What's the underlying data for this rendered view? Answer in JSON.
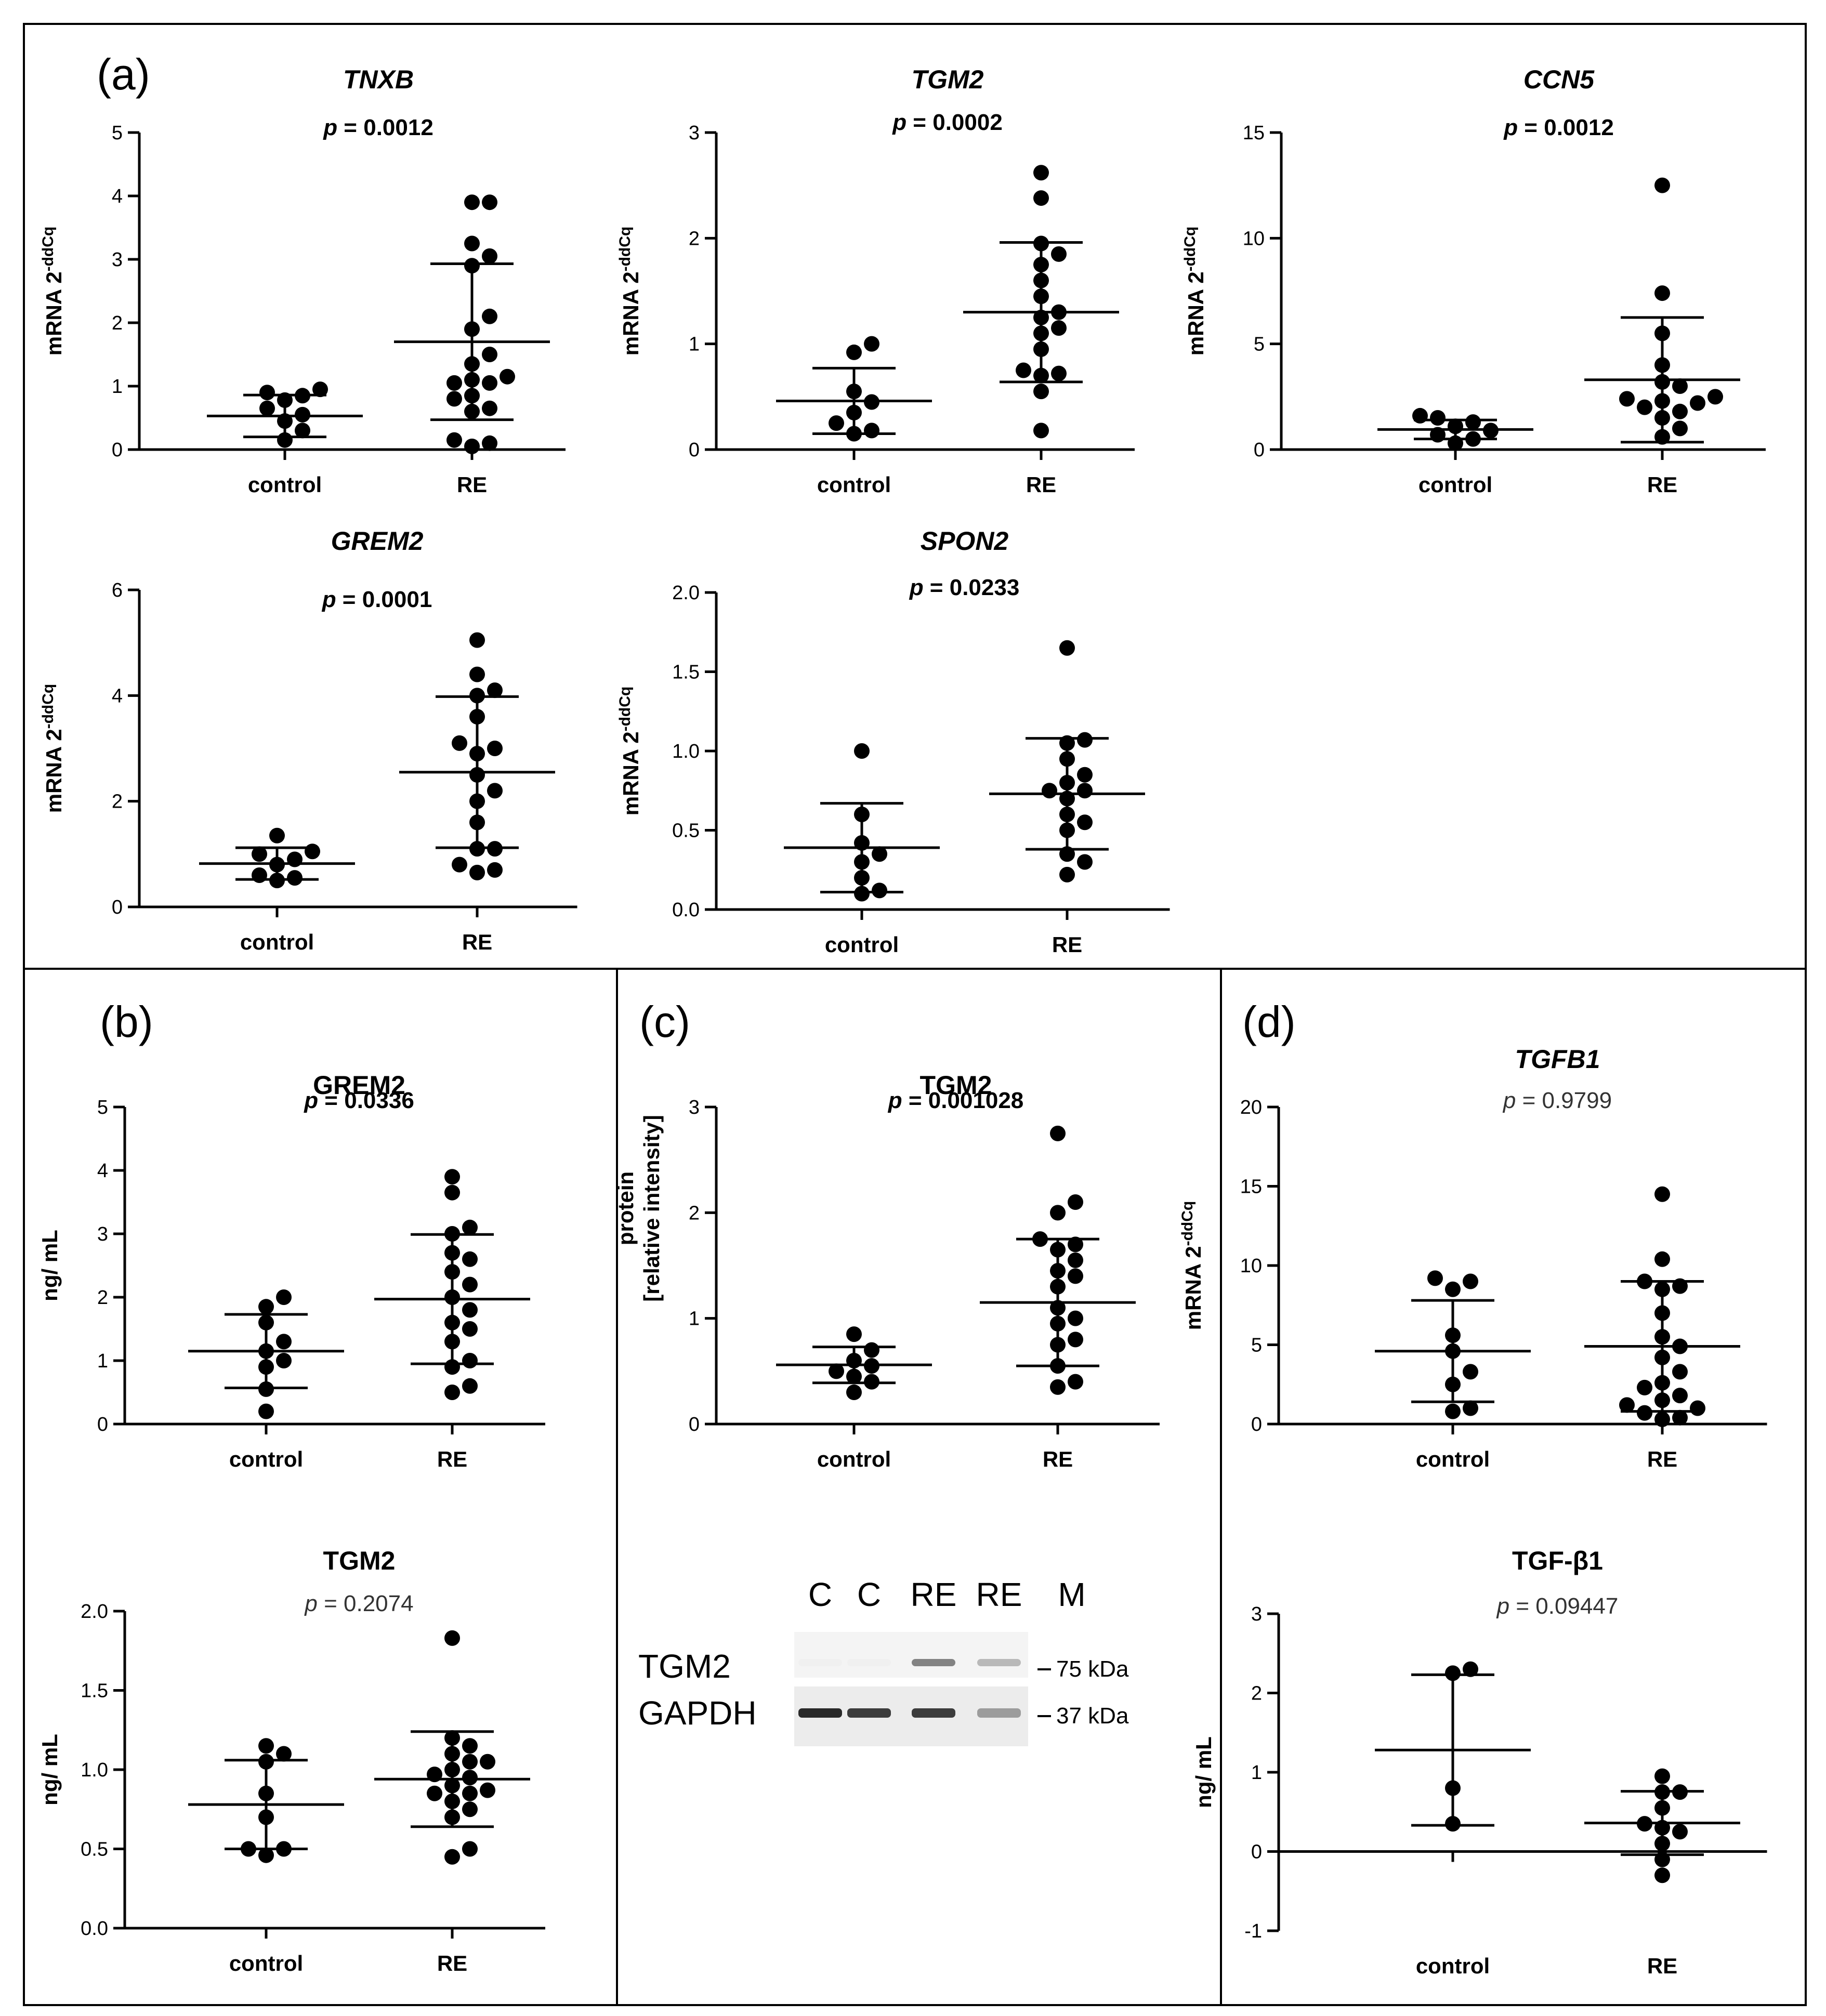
{
  "figure": {
    "panel_labels": [
      "(a)",
      "(b)",
      "(c)",
      "(d)"
    ],
    "ylabel_mrna_prefix": "mRNA 2",
    "ylabel_mrna_sup": "-ddCq",
    "ylabel_ng": "ng/ mL",
    "ylabel_protein_line1": "protein",
    "ylabel_protein_line2": "[relative intensity]"
  },
  "blot": {
    "lanes": [
      "C",
      "C",
      "RE",
      "RE",
      "M"
    ],
    "rows": [
      "TGM2",
      "GAPDH"
    ],
    "markers": [
      "75 kDa",
      "37 kDa"
    ],
    "band_intensity": {
      "TGM2": [
        0.05,
        0.05,
        0.7,
        0.5
      ],
      "GAPDH": [
        0.95,
        0.9,
        0.9,
        0.6
      ]
    }
  },
  "chart_data": [
    {
      "id": "tnxb",
      "panel": "(a)",
      "type": "scatter",
      "title": "TNXB",
      "title_italic": true,
      "pvalue": "p = 0.0012",
      "p_bold": true,
      "ylabel": "mRNA 2^-ddCq",
      "ylim": [
        0,
        5
      ],
      "yticks": [
        0,
        1,
        2,
        3,
        4,
        5
      ],
      "tick_labels": [
        "0",
        "1",
        "2",
        "3",
        "4",
        "5"
      ],
      "categories": [
        "control",
        "RE"
      ],
      "groups": [
        {
          "name": "control",
          "values": [
            0.15,
            0.3,
            0.45,
            0.55,
            0.65,
            0.78,
            0.85,
            0.9,
            0.95
          ],
          "mean": 0.53,
          "sd": 0.33
        },
        {
          "name": "RE",
          "values": [
            0.05,
            0.1,
            0.15,
            0.6,
            0.65,
            0.8,
            0.85,
            1.05,
            1.05,
            1.1,
            1.15,
            1.35,
            1.5,
            1.9,
            2.1,
            2.9,
            3.05,
            3.25,
            3.9,
            3.9
          ],
          "mean": 1.7,
          "sd": 1.23
        }
      ]
    },
    {
      "id": "tgm2-mrna",
      "panel": "(a)",
      "type": "scatter",
      "title": "TGM2",
      "title_italic": true,
      "pvalue": "p = 0.0002",
      "p_bold": true,
      "ylabel": "mRNA 2^-ddCq",
      "ylim": [
        0,
        3
      ],
      "yticks": [
        0,
        1,
        2,
        3
      ],
      "tick_labels": [
        "0",
        "1",
        "2",
        "3"
      ],
      "categories": [
        "control",
        "RE"
      ],
      "groups": [
        {
          "name": "control",
          "values": [
            0.15,
            0.18,
            0.25,
            0.35,
            0.45,
            0.55,
            0.92,
            1.0
          ],
          "mean": 0.46,
          "sd": 0.31
        },
        {
          "name": "RE",
          "values": [
            0.18,
            0.55,
            0.7,
            0.72,
            0.75,
            0.95,
            1.1,
            1.15,
            1.25,
            1.3,
            1.45,
            1.6,
            1.75,
            1.85,
            1.95,
            2.38,
            2.62
          ],
          "mean": 1.3,
          "sd": 0.66
        }
      ]
    },
    {
      "id": "ccn5",
      "panel": "(a)",
      "type": "scatter",
      "title": "CCN5",
      "title_italic": true,
      "pvalue": "p = 0.0012",
      "p_bold": true,
      "ylabel": "mRNA 2^-ddCq",
      "ylim": [
        0,
        15
      ],
      "yticks": [
        0,
        5,
        10,
        15
      ],
      "tick_labels": [
        "0",
        "5",
        "10",
        "15"
      ],
      "categories": [
        "control",
        "RE"
      ],
      "groups": [
        {
          "name": "control",
          "values": [
            0.3,
            0.5,
            0.7,
            0.9,
            1.1,
            1.3,
            1.5,
            1.6
          ],
          "mean": 0.95,
          "sd": 0.45
        },
        {
          "name": "RE",
          "values": [
            0.6,
            1.0,
            1.5,
            1.8,
            2.0,
            2.2,
            2.3,
            2.4,
            2.5,
            3.0,
            3.2,
            4.0,
            5.5,
            7.4,
            12.5
          ],
          "mean": 3.3,
          "sd": 2.95
        }
      ]
    },
    {
      "id": "grem2-mrna",
      "panel": "(a)",
      "type": "scatter",
      "title": "GREM2",
      "title_italic": true,
      "pvalue": "p = 0.0001",
      "p_bold": true,
      "ylabel": "mRNA 2^-ddCq",
      "ylim": [
        0,
        6
      ],
      "yticks": [
        0,
        2,
        4,
        6
      ],
      "tick_labels": [
        "0",
        "2",
        "4",
        "6"
      ],
      "categories": [
        "control",
        "RE"
      ],
      "groups": [
        {
          "name": "control",
          "values": [
            0.5,
            0.55,
            0.6,
            0.8,
            0.9,
            1.0,
            1.05,
            1.35
          ],
          "mean": 0.82,
          "sd": 0.3
        },
        {
          "name": "RE",
          "values": [
            0.65,
            0.7,
            0.8,
            1.1,
            1.1,
            1.6,
            2.0,
            2.2,
            2.5,
            2.9,
            3.0,
            3.1,
            3.6,
            4.0,
            4.1,
            4.4,
            5.05
          ],
          "mean": 2.55,
          "sd": 1.43
        }
      ]
    },
    {
      "id": "spon2",
      "panel": "(a)",
      "type": "scatter",
      "title": "SPON2",
      "title_italic": true,
      "pvalue": "p = 0.0233",
      "p_bold": true,
      "ylabel": "mRNA 2^-ddCq",
      "ylim": [
        0,
        2
      ],
      "yticks": [
        0,
        0.5,
        1,
        1.5,
        2
      ],
      "tick_labels": [
        "0.0",
        "0.5",
        "1.0",
        "1.5",
        "2.0"
      ],
      "categories": [
        "control",
        "RE"
      ],
      "groups": [
        {
          "name": "control",
          "values": [
            0.1,
            0.12,
            0.2,
            0.3,
            0.35,
            0.42,
            0.6,
            1.0
          ],
          "mean": 0.39,
          "sd": 0.28
        },
        {
          "name": "RE",
          "values": [
            0.22,
            0.3,
            0.35,
            0.5,
            0.55,
            0.6,
            0.7,
            0.75,
            0.75,
            0.8,
            0.85,
            0.95,
            1.05,
            1.07,
            1.65
          ],
          "mean": 0.73,
          "sd": 0.35
        }
      ]
    },
    {
      "id": "grem2-protein",
      "panel": "(b)",
      "type": "scatter",
      "title": "GREM2",
      "title_italic": false,
      "pvalue": "p = 0.0336",
      "p_bold": true,
      "ylabel": "ng/ mL",
      "ylim": [
        0,
        5
      ],
      "yticks": [
        0,
        1,
        2,
        3,
        4,
        5
      ],
      "tick_labels": [
        "0",
        "1",
        "2",
        "3",
        "4",
        "5"
      ],
      "categories": [
        "control",
        "RE"
      ],
      "groups": [
        {
          "name": "control",
          "values": [
            0.2,
            0.55,
            0.9,
            1.0,
            1.15,
            1.3,
            1.6,
            1.85,
            2.0
          ],
          "mean": 1.15,
          "sd": 0.58
        },
        {
          "name": "RE",
          "values": [
            0.5,
            0.6,
            0.9,
            1.0,
            1.3,
            1.5,
            1.6,
            1.8,
            2.0,
            2.2,
            2.4,
            2.6,
            2.7,
            3.0,
            3.1,
            3.65,
            3.9
          ],
          "mean": 1.97,
          "sd": 1.02
        }
      ]
    },
    {
      "id": "tgm2-ng",
      "panel": "(b)",
      "type": "scatter",
      "title": "TGM2",
      "title_italic": false,
      "pvalue": "p = 0.2074",
      "p_bold": false,
      "ylabel": "ng/ mL",
      "ylim": [
        0,
        2
      ],
      "yticks": [
        0,
        0.5,
        1,
        1.5,
        2
      ],
      "tick_labels": [
        "0.0",
        "0.5",
        "1.0",
        "1.5",
        "2.0"
      ],
      "categories": [
        "control",
        "RE"
      ],
      "groups": [
        {
          "name": "control",
          "values": [
            0.46,
            0.5,
            0.5,
            0.7,
            0.85,
            1.05,
            1.1,
            1.15
          ],
          "mean": 0.78,
          "sd": 0.28
        },
        {
          "name": "RE",
          "values": [
            0.45,
            0.5,
            0.7,
            0.75,
            0.8,
            0.85,
            0.85,
            0.87,
            0.9,
            0.95,
            0.97,
            1.0,
            1.05,
            1.05,
            1.1,
            1.15,
            1.2,
            1.83
          ],
          "mean": 0.94,
          "sd": 0.3
        }
      ]
    },
    {
      "id": "tgm2-protein",
      "panel": "(c)",
      "type": "scatter",
      "title": "TGM2",
      "title_italic": false,
      "pvalue": "p = 0.001028",
      "p_bold": true,
      "ylabel": "protein [relative intensity]",
      "ylim": [
        0,
        3
      ],
      "yticks": [
        0,
        1,
        2,
        3
      ],
      "tick_labels": [
        "0",
        "1",
        "2",
        "3"
      ],
      "categories": [
        "control",
        "RE"
      ],
      "groups": [
        {
          "name": "control",
          "values": [
            0.3,
            0.4,
            0.45,
            0.5,
            0.55,
            0.6,
            0.7,
            0.85
          ],
          "mean": 0.56,
          "sd": 0.17
        },
        {
          "name": "RE",
          "values": [
            0.35,
            0.4,
            0.55,
            0.75,
            0.8,
            0.95,
            1.0,
            1.1,
            1.3,
            1.4,
            1.45,
            1.55,
            1.65,
            1.7,
            1.75,
            2.0,
            2.1,
            2.75
          ],
          "mean": 1.15,
          "sd": 0.6
        }
      ]
    },
    {
      "id": "tgfb1-mrna",
      "panel": "(d)",
      "type": "scatter",
      "title": "TGFB1",
      "title_italic": true,
      "pvalue": "p = 0.9799",
      "p_bold": false,
      "ylabel": "mRNA 2^-ddCq",
      "ylim": [
        0,
        20
      ],
      "yticks": [
        0,
        5,
        10,
        15,
        20
      ],
      "tick_labels": [
        "0",
        "5",
        "10",
        "15",
        "20"
      ],
      "categories": [
        "control",
        "RE"
      ],
      "groups": [
        {
          "name": "control",
          "values": [
            0.8,
            1.0,
            2.5,
            3.3,
            4.6,
            5.6,
            8.5,
            9.0,
            9.2
          ],
          "mean": 4.6,
          "sd": 3.2
        },
        {
          "name": "RE",
          "values": [
            0.3,
            0.4,
            0.7,
            1.0,
            1.2,
            1.5,
            1.8,
            2.3,
            2.6,
            3.3,
            4.2,
            4.9,
            5.5,
            7.0,
            8.5,
            8.7,
            9.0,
            10.4,
            14.5
          ],
          "mean": 4.9,
          "sd": 4.1
        }
      ]
    },
    {
      "id": "tgfb1-protein",
      "panel": "(d)",
      "type": "scatter",
      "title": "TGF-β1",
      "title_italic": false,
      "pvalue": "p = 0.09447",
      "p_bold": false,
      "ylabel": "ng/ mL",
      "ylim": [
        -1,
        3
      ],
      "yticks": [
        -1,
        0,
        1,
        2,
        3
      ],
      "tick_labels": [
        "-1",
        "0",
        "1",
        "2",
        "3"
      ],
      "categories": [
        "control",
        "RE"
      ],
      "groups": [
        {
          "name": "control",
          "values": [
            0.35,
            0.8,
            2.3,
            2.25
          ],
          "mean": 1.28,
          "sd": 0.95
        },
        {
          "name": "RE",
          "values": [
            -0.3,
            -0.1,
            0.1,
            0.25,
            0.3,
            0.35,
            0.55,
            0.75,
            0.75,
            0.95
          ],
          "mean": 0.36,
          "sd": 0.4
        }
      ]
    }
  ]
}
